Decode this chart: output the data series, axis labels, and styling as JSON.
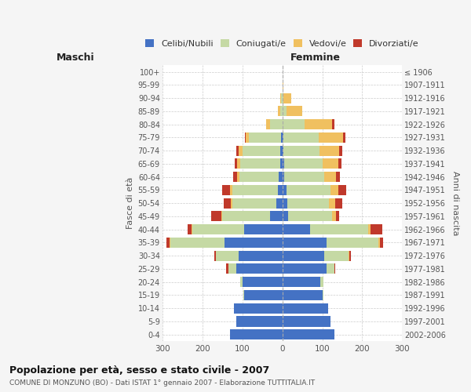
{
  "age_groups": [
    "0-4",
    "5-9",
    "10-14",
    "15-19",
    "20-24",
    "25-29",
    "30-34",
    "35-39",
    "40-44",
    "45-49",
    "50-54",
    "55-59",
    "60-64",
    "65-69",
    "70-74",
    "75-79",
    "80-84",
    "85-89",
    "90-94",
    "95-99",
    "100+"
  ],
  "birth_years": [
    "2002-2006",
    "1997-2001",
    "1992-1996",
    "1987-1991",
    "1982-1986",
    "1977-1981",
    "1972-1976",
    "1967-1971",
    "1962-1966",
    "1957-1961",
    "1952-1956",
    "1947-1951",
    "1942-1946",
    "1937-1941",
    "1932-1936",
    "1927-1931",
    "1922-1926",
    "1917-1921",
    "1912-1916",
    "1907-1911",
    "≤ 1906"
  ],
  "maschi": {
    "celibi": [
      130,
      115,
      120,
      95,
      100,
      115,
      110,
      145,
      95,
      30,
      15,
      10,
      8,
      5,
      5,
      3,
      0,
      0,
      0,
      0,
      0
    ],
    "coniugati": [
      0,
      0,
      0,
      2,
      5,
      20,
      55,
      135,
      130,
      120,
      110,
      115,
      100,
      100,
      95,
      80,
      30,
      5,
      3,
      0,
      0
    ],
    "vedovi": [
      0,
      0,
      0,
      0,
      0,
      0,
      0,
      2,
      2,
      2,
      3,
      5,
      5,
      8,
      10,
      8,
      10,
      5,
      2,
      0,
      0
    ],
    "divorziati": [
      0,
      0,
      0,
      0,
      0,
      5,
      5,
      8,
      10,
      25,
      18,
      20,
      10,
      5,
      5,
      3,
      0,
      0,
      0,
      0,
      0
    ]
  },
  "femmine": {
    "nubili": [
      130,
      120,
      115,
      100,
      95,
      110,
      105,
      110,
      70,
      15,
      12,
      10,
      5,
      5,
      3,
      2,
      0,
      0,
      0,
      0,
      0
    ],
    "coniugate": [
      0,
      0,
      0,
      2,
      8,
      20,
      60,
      130,
      145,
      110,
      105,
      110,
      100,
      95,
      90,
      90,
      55,
      10,
      2,
      0,
      0
    ],
    "vedove": [
      0,
      0,
      0,
      0,
      0,
      0,
      2,
      5,
      5,
      10,
      15,
      20,
      30,
      40,
      50,
      60,
      70,
      40,
      20,
      2,
      0
    ],
    "divorziate": [
      0,
      0,
      0,
      0,
      0,
      3,
      5,
      8,
      30,
      8,
      18,
      20,
      10,
      8,
      8,
      5,
      5,
      0,
      0,
      0,
      0
    ]
  },
  "colors": {
    "celibi": "#4472c4",
    "coniugati": "#c5d9a4",
    "vedovi": "#f0c060",
    "divorziati": "#c0392b"
  },
  "xlim": 300,
  "title": "Popolazione per età, sesso e stato civile - 2007",
  "subtitle": "COMUNE DI MONZUNO (BO) - Dati ISTAT 1° gennaio 2007 - Elaborazione TUTTITALIA.IT",
  "ylabel_left": "Fasce di età",
  "ylabel_right": "Anni di nascita",
  "xlabel_maschi": "Maschi",
  "xlabel_femmine": "Femmine",
  "legend_labels": [
    "Celibi/Nubili",
    "Coniugati/e",
    "Vedovi/e",
    "Divorziati/e"
  ],
  "bg_color": "#f5f5f5",
  "bar_bg_color": "#ffffff"
}
